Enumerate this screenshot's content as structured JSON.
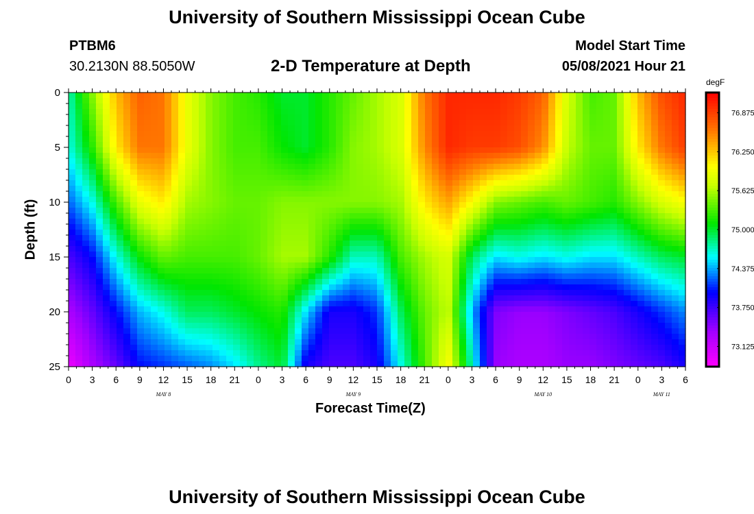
{
  "header": {
    "title": "University of Southern Mississippi Ocean Cube",
    "station": "PTBM6",
    "coords": "30.2130N  88.5050W",
    "subtitle": "2-D Temperature at Depth",
    "model_start_label": "Model Start Time",
    "model_start_value": "05/08/2021 Hour 21"
  },
  "footer": {
    "title": "University of Southern Mississippi Ocean Cube"
  },
  "chart_data": {
    "type": "heatmap",
    "title": "2-D Temperature at Depth",
    "xlabel": "Forecast Time(Z)",
    "ylabel": "Depth (ft)",
    "unit": "degF",
    "x_range_hours": [
      0,
      78
    ],
    "ylim": [
      0,
      25
    ],
    "y_ticks": [
      0,
      5,
      10,
      15,
      20,
      25
    ],
    "x_tick_labels": [
      "0",
      "3",
      "6",
      "9",
      "12",
      "15",
      "18",
      "21",
      "0",
      "3",
      "6",
      "9",
      "12",
      "15",
      "18",
      "21",
      "0",
      "3",
      "6",
      "9",
      "12",
      "15",
      "18",
      "21",
      "0",
      "3",
      "6"
    ],
    "day_labels": [
      {
        "label": "MAY 8",
        "hour": 12
      },
      {
        "label": "MAY 9",
        "hour": 36
      },
      {
        "label": "MAY 10",
        "hour": 60
      },
      {
        "label": "MAY 11",
        "hour": 75
      }
    ],
    "colorbar": {
      "range": [
        72.8,
        77.2
      ],
      "ticks": [
        "76.875",
        "76.250",
        "75.625",
        "75.000",
        "74.375",
        "73.750",
        "73.125"
      ],
      "tick_values": [
        76.875,
        76.25,
        75.625,
        75.0,
        74.375,
        73.75,
        73.125
      ]
    },
    "temperature_profiles_degF": {
      "depths_ft": [
        0,
        5,
        10,
        15,
        20,
        25
      ],
      "by_hour": [
        {
          "hour": 0,
          "values": [
            74.7,
            74.6,
            74.2,
            73.7,
            73.3,
            72.9
          ]
        },
        {
          "hour": 3,
          "values": [
            75.5,
            75.2,
            74.6,
            74.0,
            73.6,
            73.3
          ]
        },
        {
          "hour": 6,
          "values": [
            76.3,
            76.1,
            75.3,
            74.6,
            74.0,
            73.6
          ]
        },
        {
          "hour": 9,
          "values": [
            76.7,
            76.6,
            75.9,
            75.1,
            74.4,
            74.0
          ]
        },
        {
          "hour": 12,
          "values": [
            76.6,
            76.6,
            76.1,
            75.4,
            74.6,
            74.1
          ]
        },
        {
          "hour": 15,
          "values": [
            75.9,
            75.9,
            75.6,
            75.3,
            74.9,
            74.2
          ]
        },
        {
          "hour": 18,
          "values": [
            75.5,
            75.5,
            75.5,
            75.3,
            74.9,
            74.3
          ]
        },
        {
          "hour": 21,
          "values": [
            75.3,
            75.3,
            75.4,
            75.3,
            75.0,
            74.5
          ]
        },
        {
          "hour": 24,
          "values": [
            75.2,
            75.3,
            75.4,
            75.4,
            75.1,
            74.8
          ]
        },
        {
          "hour": 27,
          "values": [
            75.0,
            75.1,
            75.5,
            75.6,
            75.2,
            75.0
          ]
        },
        {
          "hour": 30,
          "values": [
            75.0,
            75.0,
            75.5,
            75.6,
            74.5,
            73.9
          ]
        },
        {
          "hour": 33,
          "values": [
            75.2,
            75.2,
            75.5,
            75.2,
            73.9,
            73.7
          ]
        },
        {
          "hour": 36,
          "values": [
            75.4,
            75.5,
            75.5,
            74.7,
            73.9,
            73.7
          ]
        },
        {
          "hour": 39,
          "values": [
            75.6,
            75.6,
            75.5,
            74.7,
            74.1,
            73.9
          ]
        },
        {
          "hour": 42,
          "values": [
            75.8,
            75.8,
            75.6,
            75.3,
            74.9,
            74.6
          ]
        },
        {
          "hour": 45,
          "values": [
            76.6,
            76.5,
            76.1,
            75.6,
            75.4,
            75.3
          ]
        },
        {
          "hour": 48,
          "values": [
            77.0,
            77.0,
            76.4,
            75.8,
            75.7,
            76.0
          ]
        },
        {
          "hour": 51,
          "values": [
            77.0,
            76.9,
            76.0,
            74.9,
            74.4,
            74.7
          ]
        },
        {
          "hour": 54,
          "values": [
            77.0,
            76.9,
            75.5,
            74.5,
            73.5,
            73.4
          ]
        },
        {
          "hour": 57,
          "values": [
            76.9,
            76.8,
            75.4,
            74.6,
            73.4,
            73.3
          ]
        },
        {
          "hour": 60,
          "values": [
            76.7,
            76.5,
            75.3,
            74.5,
            73.4,
            73.3
          ]
        },
        {
          "hour": 63,
          "values": [
            75.8,
            75.7,
            75.4,
            74.6,
            73.5,
            73.4
          ]
        },
        {
          "hour": 66,
          "values": [
            75.3,
            75.4,
            75.3,
            74.5,
            73.6,
            73.4
          ]
        },
        {
          "hour": 69,
          "values": [
            75.4,
            75.4,
            75.2,
            74.5,
            73.7,
            73.5
          ]
        },
        {
          "hour": 72,
          "values": [
            76.3,
            76.1,
            75.5,
            74.7,
            73.9,
            73.6
          ]
        },
        {
          "hour": 75,
          "values": [
            76.8,
            76.6,
            75.8,
            74.9,
            74.1,
            73.7
          ]
        },
        {
          "hour": 78,
          "values": [
            77.0,
            76.9,
            76.0,
            75.0,
            74.3,
            73.9
          ]
        }
      ]
    }
  }
}
